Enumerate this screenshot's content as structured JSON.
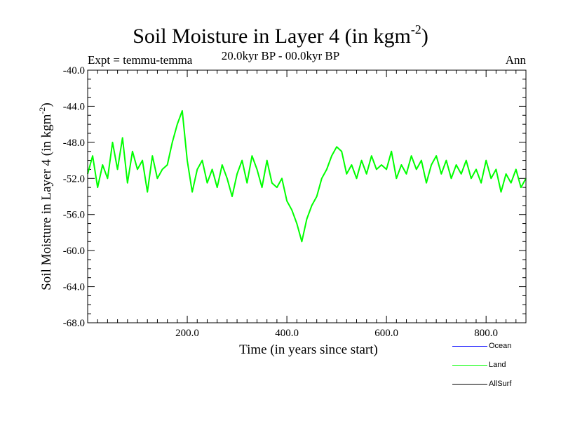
{
  "header": {
    "title_main": "Soil Moisture in Layer 4 (in kgm",
    "title_exp": "-2",
    "title_close": ")",
    "expt": "Expt = temmu-temma",
    "period": "20.0kyr BP - 00.0kyr BP",
    "season": "Ann"
  },
  "chart_data": {
    "type": "line",
    "title": "Soil Moisture in Layer 4 (in kgm-2)",
    "xlabel": "Time (in years since start)",
    "ylabel": "Soil Moisture in Layer 4 (in kgm-2)",
    "xlim": [
      0,
      880
    ],
    "ylim": [
      -68,
      -40
    ],
    "xticks": [
      200,
      400,
      600,
      800
    ],
    "xtick_labels": [
      "200.0",
      "400.0",
      "600.0",
      "800.0"
    ],
    "yticks": [
      -40,
      -44,
      -48,
      -52,
      -56,
      -60,
      -64,
      -68
    ],
    "ytick_labels": [
      "-40.0",
      "-44.0",
      "-48.0",
      "-52.0",
      "-56.0",
      "-60.0",
      "-64.0",
      "-68.0"
    ],
    "series": [
      {
        "name": "Land",
        "color": "#00ff00",
        "x": [
          0,
          10,
          20,
          30,
          40,
          50,
          60,
          70,
          80,
          90,
          100,
          110,
          120,
          130,
          140,
          150,
          160,
          170,
          180,
          190,
          200,
          210,
          220,
          230,
          240,
          250,
          260,
          270,
          280,
          290,
          300,
          310,
          320,
          330,
          340,
          350,
          360,
          370,
          380,
          390,
          400,
          410,
          420,
          430,
          440,
          450,
          460,
          470,
          480,
          490,
          500,
          510,
          520,
          530,
          540,
          550,
          560,
          570,
          580,
          590,
          600,
          610,
          620,
          630,
          640,
          650,
          660,
          670,
          680,
          690,
          700,
          710,
          720,
          730,
          740,
          750,
          760,
          770,
          780,
          790,
          800,
          810,
          820,
          830,
          840,
          850,
          860,
          870,
          880
        ],
        "values": [
          -51.5,
          -49.5,
          -53.0,
          -50.5,
          -52.0,
          -48.0,
          -51.0,
          -47.5,
          -52.5,
          -49.0,
          -51.0,
          -50.0,
          -53.5,
          -49.5,
          -52.0,
          -51.0,
          -50.5,
          -48.0,
          -46.0,
          -44.5,
          -50.0,
          -53.5,
          -51.0,
          -50.0,
          -52.5,
          -51.0,
          -53.0,
          -50.5,
          -52.0,
          -54.0,
          -51.5,
          -50.0,
          -52.5,
          -49.5,
          -51.0,
          -53.0,
          -50.0,
          -52.5,
          -53.0,
          -52.0,
          -54.5,
          -55.5,
          -57.0,
          -59.0,
          -56.5,
          -55.0,
          -54.0,
          -52.0,
          -51.0,
          -49.5,
          -48.5,
          -49.0,
          -51.5,
          -50.5,
          -52.0,
          -50.0,
          -51.5,
          -49.5,
          -51.0,
          -50.5,
          -51.0,
          -49.0,
          -52.0,
          -50.5,
          -51.5,
          -49.5,
          -51.0,
          -50.0,
          -52.5,
          -50.5,
          -49.5,
          -51.5,
          -50.0,
          -52.0,
          -50.5,
          -51.5,
          -50.0,
          -52.0,
          -51.0,
          -52.5,
          -50.0,
          -52.0,
          -51.0,
          -53.5,
          -51.5,
          -52.5,
          -51.0,
          -53.0,
          -52.0
        ]
      },
      {
        "name": "Ocean",
        "color": "#0000ff",
        "x": [],
        "values": []
      },
      {
        "name": "AllSurf",
        "color": "#000000",
        "x": [],
        "values": []
      }
    ],
    "legend": [
      "Ocean",
      "Land",
      "AllSurf"
    ],
    "legend_placement": "bottom-right"
  }
}
